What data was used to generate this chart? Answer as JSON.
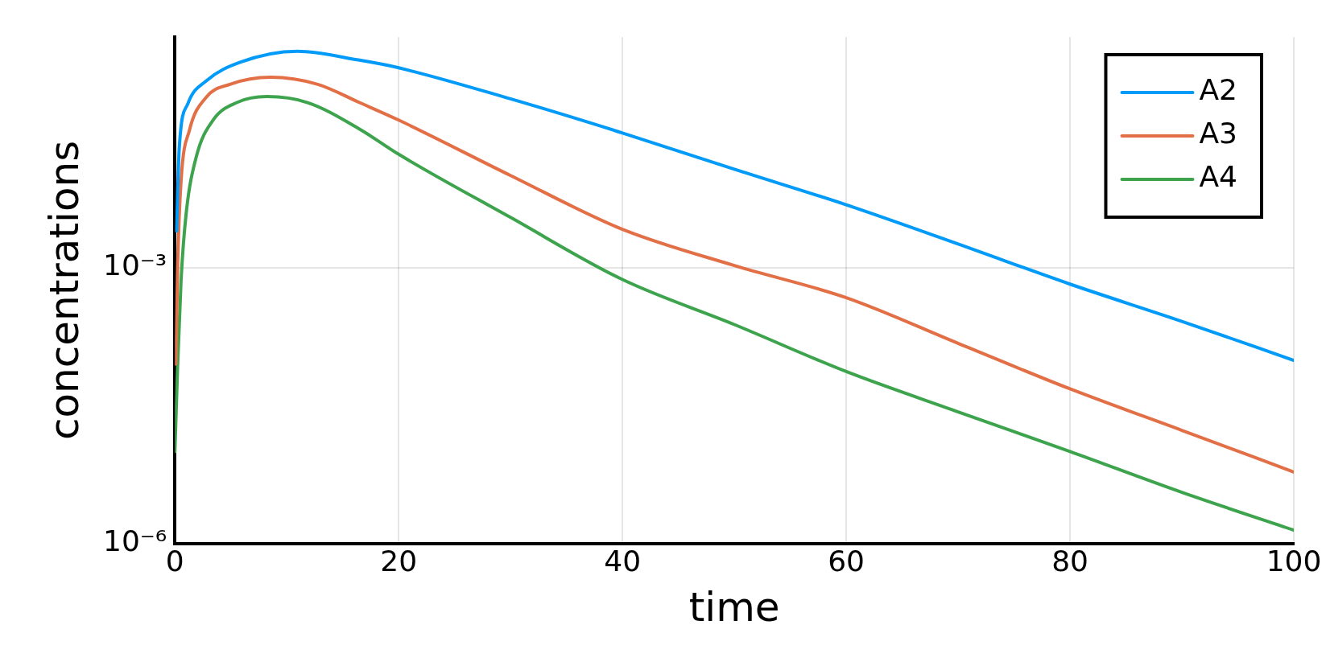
{
  "chart_data": {
    "type": "line",
    "xlabel": "time",
    "ylabel": "concentrations",
    "log": "y",
    "grid": true,
    "legend": "top right",
    "marker": "none",
    "line_style": "solid",
    "xlim": [
      0,
      100
    ],
    "xticks": [
      0,
      20,
      40,
      60,
      80,
      100
    ],
    "ylim": [
      1e-06,
      0.32
    ],
    "yticks": [
      {
        "value": 1e-06,
        "label": "10⁻⁶"
      },
      {
        "value": 0.001,
        "label": "10⁻³"
      }
    ],
    "series": [
      {
        "name": "A2",
        "color": "#009af9",
        "x": [
          0.15,
          0.39,
          1.15,
          2.81,
          5.83,
          10.96,
          16.4,
          20,
          30,
          40,
          50,
          60,
          70,
          80,
          90,
          100
        ],
        "values": [
          0.0025,
          0.02,
          0.06,
          0.107,
          0.17,
          0.224,
          0.18,
          0.148,
          0.068,
          0.029,
          0.0117,
          0.0048,
          0.0018,
          0.00066,
          0.00026,
          9.8e-05
        ]
      },
      {
        "name": "A3",
        "color": "#e26f46",
        "x": [
          0.09,
          0.25,
          0.55,
          1.3,
          2.81,
          4.92,
          8.55,
          12.77,
          16.5,
          20,
          30,
          40,
          50,
          60,
          70,
          80,
          90,
          100
        ],
        "values": [
          8.9e-05,
          0.0011,
          0.0087,
          0.031,
          0.071,
          0.098,
          0.117,
          0.098,
          0.062,
          0.04,
          0.01,
          0.0026,
          0.00105,
          0.00047,
          0.00015,
          4.8e-05,
          1.7e-05,
          6e-06
        ]
      },
      {
        "name": "A4",
        "color": "#3da44d",
        "x": [
          0,
          0.25,
          0.55,
          1,
          1.9,
          3.41,
          5.53,
          8.24,
          11.86,
          16.5,
          20,
          30,
          40,
          50,
          60,
          70,
          80,
          90,
          100
        ],
        "values": [
          1e-05,
          8.9e-05,
          0.00072,
          0.0038,
          0.0158,
          0.04,
          0.062,
          0.072,
          0.062,
          0.032,
          0.017,
          0.0035,
          0.00074,
          0.00024,
          7.4e-05,
          2.7e-05,
          1e-05,
          3.6e-06,
          1.4e-06
        ]
      }
    ]
  }
}
